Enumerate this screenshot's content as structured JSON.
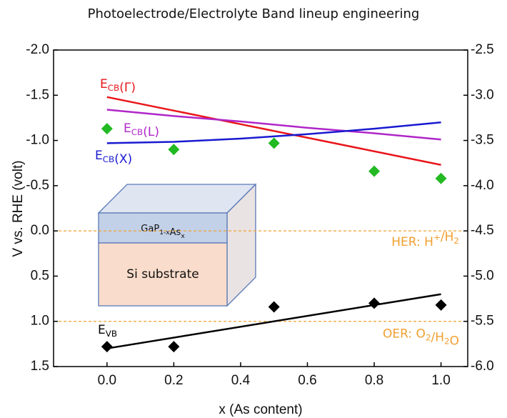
{
  "chart_data": {
    "type": "line",
    "title": "Photoelectrode/Electrolyte Band lineup engineering",
    "xlabel": "x (As content)",
    "ylabel": "V vs. RHE (volt)",
    "xlim": [
      -0.16,
      1.08
    ],
    "xticks": [
      {
        "value": 0,
        "label": "0.0"
      },
      0.2,
      0.4,
      0.6,
      0.8,
      {
        "value": 1,
        "label": "1.0"
      }
    ],
    "ylim": [
      -2,
      1.5
    ],
    "y_inverted": true,
    "yticks": [
      {
        "value": -2,
        "label": "-2.0"
      },
      -1.5,
      {
        "value": -1,
        "label": "-1.0"
      },
      -0.5,
      {
        "value": 0,
        "label": "0.0"
      },
      0.5,
      {
        "value": 1,
        "label": "1.0"
      },
      1.5
    ],
    "y2lim": [
      -2.5,
      -6
    ],
    "y2ticks": [
      -2.5,
      {
        "value": -3,
        "label": "-3.0"
      },
      -3.5,
      {
        "value": -4,
        "label": "-4.0"
      },
      -4.5,
      {
        "value": -5,
        "label": "-5.0"
      },
      -5.5,
      {
        "value": -6,
        "label": "-6.0"
      }
    ],
    "series": [
      {
        "kind": "line",
        "label": [
          "E",
          {
            "sub": "CB"
          },
          "(Γ)"
        ],
        "color": "#e8161b",
        "x": [
          0,
          0.2,
          0.4,
          0.6,
          0.8,
          1.0
        ],
        "values": [
          -1.48,
          -1.33,
          -1.18,
          -1.03,
          -0.88,
          -0.73
        ]
      },
      {
        "kind": "line",
        "label": [
          "E",
          {
            "sub": "CB"
          },
          "(L)"
        ],
        "color": "#b026c8",
        "x": [
          0,
          0.2,
          0.4,
          0.6,
          0.8,
          1.0
        ],
        "values": [
          -1.34,
          -1.27,
          -1.21,
          -1.14,
          -1.08,
          -1.01
        ]
      },
      {
        "kind": "line",
        "label": [
          "E",
          {
            "sub": "CB"
          },
          "(X)"
        ],
        "color": "#1a1ad0",
        "x": [
          0,
          0.2,
          0.4,
          0.6,
          0.8,
          1.0
        ],
        "values": [
          -0.97,
          -0.985,
          -1.02,
          -1.07,
          -1.13,
          -1.2
        ]
      },
      {
        "kind": "scatter",
        "color": "#22b922",
        "x": [
          0,
          0.2,
          0.5,
          0.8,
          1.0
        ],
        "values": [
          -1.13,
          -0.9,
          -0.97,
          -0.66,
          -0.58
        ]
      },
      {
        "kind": "scatter",
        "color": "#000000",
        "x": [
          0,
          0.2,
          0.5,
          0.8,
          1.0
        ],
        "values": [
          1.28,
          1.28,
          0.84,
          0.8,
          0.82
        ]
      },
      {
        "kind": "line",
        "label": [
          "E",
          {
            "sub": "VB"
          }
        ],
        "color": "#000000",
        "x": [
          0,
          1.0
        ],
        "values": [
          1.3,
          0.7
        ]
      }
    ],
    "reference_lines": [
      {
        "value": 0,
        "color": "#f0a030",
        "label": [
          "HER: H",
          {
            "sup": "+"
          },
          "/H",
          {
            "sub": "2"
          }
        ]
      },
      {
        "value": 1.0,
        "color": "#f0a030",
        "label": [
          "OER: O",
          {
            "sub": "2"
          },
          "/H",
          {
            "sub": "2"
          },
          "O"
        ]
      }
    ],
    "inset": {
      "layer_label": [
        "GaP",
        {
          "sub": "1-x"
        },
        "As",
        {
          "sub": "x"
        }
      ],
      "substrate_label": "Si substrate"
    }
  }
}
